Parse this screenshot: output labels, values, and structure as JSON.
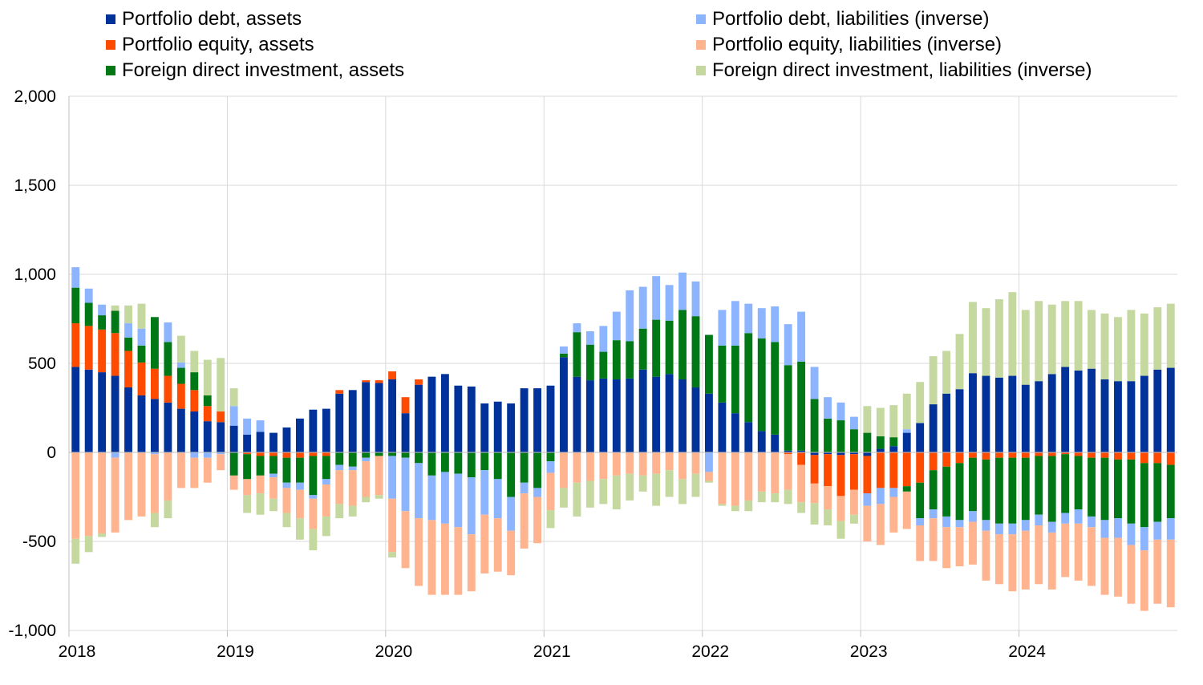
{
  "chart_data": {
    "type": "bar",
    "stacked": true,
    "title": "",
    "xlabel": "",
    "ylabel": "",
    "ylim": [
      -1000,
      2000
    ],
    "y_ticks": [
      2000,
      1500,
      1000,
      500,
      0,
      -500,
      -1000
    ],
    "y_tick_labels": [
      "2,000",
      "1,500",
      "1,000",
      "500",
      "0",
      "-500",
      "-1,000"
    ],
    "x_tick_labels": [
      "2018",
      "2019",
      "2020",
      "2021",
      "2022",
      "2023",
      "2024"
    ],
    "months_per_tick": 12,
    "grid": "horizontal and vertical",
    "legend_position": "top",
    "categories": [
      "2018-01",
      "2018-02",
      "2018-03",
      "2018-04",
      "2018-05",
      "2018-06",
      "2018-07",
      "2018-08",
      "2018-09",
      "2018-10",
      "2018-11",
      "2018-12",
      "2019-01",
      "2019-02",
      "2019-03",
      "2019-04",
      "2019-05",
      "2019-06",
      "2019-07",
      "2019-08",
      "2019-09",
      "2019-10",
      "2019-11",
      "2019-12",
      "2020-01",
      "2020-02",
      "2020-03",
      "2020-04",
      "2020-05",
      "2020-06",
      "2020-07",
      "2020-08",
      "2020-09",
      "2020-10",
      "2020-11",
      "2020-12",
      "2021-01",
      "2021-02",
      "2021-03",
      "2021-04",
      "2021-05",
      "2021-06",
      "2021-07",
      "2021-08",
      "2021-09",
      "2021-10",
      "2021-11",
      "2021-12",
      "2022-01",
      "2022-02",
      "2022-03",
      "2022-04",
      "2022-05",
      "2022-06",
      "2022-07",
      "2022-08",
      "2022-09",
      "2022-10",
      "2022-11",
      "2022-12",
      "2023-01",
      "2023-02",
      "2023-03",
      "2023-04",
      "2023-05",
      "2023-06",
      "2023-07",
      "2023-08",
      "2023-09",
      "2023-10",
      "2023-11",
      "2023-12",
      "2024-01",
      "2024-02",
      "2024-03",
      "2024-04",
      "2024-05",
      "2024-06",
      "2024-07",
      "2024-08",
      "2024-09",
      "2024-10",
      "2024-11",
      "2024-12"
    ],
    "series": [
      {
        "name": "Portfolio debt, assets",
        "color": "#003299",
        "values": [
          480,
          465,
          450,
          430,
          365,
          320,
          300,
          280,
          245,
          230,
          175,
          170,
          150,
          100,
          115,
          110,
          140,
          190,
          240,
          245,
          330,
          350,
          395,
          390,
          410,
          220,
          380,
          425,
          440,
          375,
          370,
          275,
          285,
          275,
          360,
          360,
          375,
          535,
          425,
          405,
          415,
          410,
          415,
          465,
          425,
          440,
          410,
          365,
          330,
          280,
          220,
          170,
          120,
          100,
          10,
          10,
          -15,
          -10,
          -15,
          -10,
          -20,
          20,
          35,
          110,
          165,
          270,
          330,
          355,
          445,
          430,
          420,
          430,
          380,
          400,
          440,
          480,
          460,
          470,
          410,
          400,
          400,
          430,
          465,
          475
        ]
      },
      {
        "name": "Portfolio equity, assets",
        "color": "#FF4B00",
        "values": [
          245,
          245,
          240,
          240,
          205,
          185,
          170,
          150,
          140,
          120,
          85,
          60,
          0,
          -10,
          -20,
          -20,
          -30,
          -30,
          -20,
          -20,
          20,
          0,
          10,
          15,
          45,
          90,
          30,
          0,
          0,
          0,
          0,
          0,
          0,
          0,
          0,
          0,
          0,
          0,
          0,
          0,
          0,
          0,
          0,
          0,
          0,
          0,
          0,
          0,
          0,
          0,
          0,
          0,
          0,
          0,
          -10,
          -70,
          -160,
          -180,
          -230,
          -200,
          -210,
          -200,
          -200,
          -190,
          -170,
          -100,
          -80,
          -60,
          -30,
          -40,
          -30,
          -30,
          -30,
          -20,
          -20,
          -10,
          -20,
          -30,
          -30,
          -40,
          -40,
          -60,
          -60,
          -70
        ]
      },
      {
        "name": "Foreign direct investment, assets",
        "color": "#007816",
        "values": [
          200,
          130,
          80,
          125,
          75,
          95,
          290,
          190,
          90,
          100,
          60,
          0,
          -130,
          -140,
          -110,
          -100,
          -140,
          -140,
          -220,
          -130,
          -70,
          -80,
          -30,
          -20,
          -20,
          -30,
          -60,
          -130,
          -110,
          -120,
          -140,
          -100,
          -150,
          -250,
          -170,
          -200,
          -50,
          20,
          250,
          200,
          150,
          220,
          210,
          230,
          320,
          300,
          390,
          400,
          330,
          320,
          380,
          500,
          520,
          520,
          480,
          500,
          300,
          190,
          180,
          130,
          110,
          70,
          50,
          -30,
          -200,
          -220,
          -280,
          -320,
          -300,
          -340,
          -370,
          -370,
          -350,
          -330,
          -370,
          -330,
          -300,
          -330,
          -350,
          -330,
          -360,
          -360,
          -330,
          -300
        ]
      },
      {
        "name": "Portfolio debt, liabilities (inverse)",
        "color": "#8CB4FF",
        "values": [
          115,
          80,
          60,
          -30,
          80,
          95,
          -10,
          110,
          30,
          -30,
          -30,
          -10,
          110,
          90,
          65,
          -20,
          -30,
          -40,
          -20,
          -30,
          -30,
          -20,
          -20,
          0,
          -240,
          -300,
          -310,
          -250,
          -290,
          -300,
          -320,
          -250,
          -220,
          -190,
          -60,
          -50,
          -65,
          40,
          50,
          75,
          145,
          160,
          285,
          235,
          245,
          200,
          210,
          195,
          -110,
          200,
          250,
          165,
          170,
          200,
          230,
          280,
          180,
          120,
          100,
          70,
          -70,
          -90,
          -50,
          20,
          -40,
          -50,
          -60,
          -40,
          -60,
          -60,
          -60,
          -60,
          -60,
          -60,
          -60,
          -60,
          -80,
          -60,
          -100,
          -110,
          -120,
          -130,
          -100,
          -120
        ]
      },
      {
        "name": "Portfolio equity, liabilities (inverse)",
        "color": "#FFB400",
        "values": [
          -485,
          -470,
          -455,
          -420,
          -380,
          -360,
          -330,
          -270,
          -200,
          -170,
          -140,
          -90,
          -80,
          -90,
          -100,
          -120,
          -140,
          -160,
          -170,
          -180,
          -190,
          -200,
          -200,
          -220,
          -300,
          -320,
          -380,
          -420,
          -400,
          -380,
          -320,
          -330,
          -300,
          -250,
          -310,
          -260,
          -210,
          -200,
          -170,
          -160,
          -150,
          -130,
          -120,
          -130,
          -120,
          -100,
          -150,
          -120,
          -50,
          -290,
          -300,
          -270,
          -220,
          -230,
          -200,
          -210,
          -110,
          -130,
          -140,
          -140,
          -200,
          -230,
          -200,
          -210,
          -200,
          -240,
          -230,
          -220,
          -240,
          -280,
          -280,
          -320,
          -330,
          -330,
          -320,
          -300,
          -320,
          -330,
          -320,
          -330,
          -330,
          -340,
          -360,
          -380
        ]
      },
      {
        "name": "Foreign direct investment, liabilities (inverse)",
        "color": "#A6C68C",
        "values": [
          -140,
          -90,
          -20,
          30,
          100,
          140,
          -80,
          -100,
          150,
          120,
          200,
          300,
          100,
          -100,
          -120,
          -70,
          -80,
          -120,
          -120,
          -110,
          -80,
          -60,
          -30,
          -20,
          -30,
          0,
          0,
          0,
          0,
          0,
          0,
          0,
          0,
          0,
          0,
          0,
          -100,
          -110,
          -190,
          -150,
          -140,
          -190,
          -150,
          -90,
          -180,
          -150,
          -140,
          -130,
          -10,
          -10,
          -30,
          -60,
          -60,
          -50,
          -80,
          -60,
          -120,
          -90,
          -100,
          -50,
          150,
          160,
          180,
          200,
          230,
          270,
          240,
          310,
          400,
          380,
          440,
          470,
          420,
          450,
          390,
          370,
          390,
          330,
          370,
          360,
          400,
          350,
          350,
          360
        ]
      }
    ]
  }
}
